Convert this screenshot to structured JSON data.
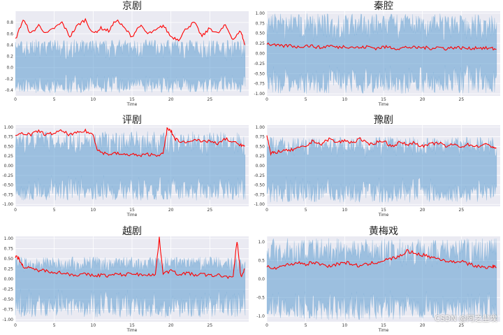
{
  "watermark": "CSDN @阿之尘埃",
  "colors": {
    "background": "#eaeaf2",
    "waveform": "#5b9bd0",
    "envelope": "#ff0000",
    "grid": "#ffffff"
  },
  "chart_data": [
    {
      "type": "line",
      "title": "京剧",
      "xlabel": "Time",
      "ylabel": "",
      "xlim": [
        0,
        30
      ],
      "ylim": [
        -0.5,
        1.0
      ],
      "grid": true,
      "xticks": [
        0,
        5,
        10,
        15,
        20,
        25
      ],
      "yticks": [
        -0.4,
        -0.2,
        0.0,
        0.2,
        0.4,
        0.6,
        0.8
      ],
      "ytick_labels": [
        "-0.4",
        "-0.2",
        "0.0",
        "0.2",
        "0.4",
        "0.6",
        "0.8"
      ],
      "series": [
        {
          "kind": "waveform",
          "amplitude_range": [
            -0.45,
            0.5
          ]
        },
        {
          "kind": "envelope",
          "x": [
            0,
            1,
            2,
            3,
            4,
            5,
            6,
            7,
            8,
            9,
            10,
            11,
            12,
            13,
            14,
            15,
            16,
            17,
            18,
            19,
            20,
            21,
            22,
            23,
            24,
            25,
            26,
            27,
            28,
            29,
            29.5
          ],
          "y": [
            0.5,
            0.85,
            0.6,
            0.75,
            0.6,
            0.7,
            0.8,
            0.55,
            0.75,
            0.85,
            0.6,
            0.7,
            0.65,
            0.85,
            0.7,
            0.55,
            0.75,
            0.6,
            0.65,
            0.75,
            0.55,
            0.5,
            0.7,
            0.8,
            0.55,
            0.7,
            0.6,
            0.75,
            0.5,
            0.65,
            0.4
          ]
        }
      ]
    },
    {
      "type": "line",
      "title": "秦腔",
      "xlabel": "Time",
      "ylabel": "",
      "xlim": [
        0,
        30
      ],
      "ylim": [
        -1.05,
        1.05
      ],
      "grid": true,
      "xticks": [
        0,
        5,
        10,
        15,
        20,
        25
      ],
      "yticks": [
        -1.0,
        -0.75,
        -0.5,
        -0.25,
        0.0,
        0.25,
        0.5,
        0.75,
        1.0
      ],
      "ytick_labels": [
        "-1.00",
        "-0.75",
        "-0.50",
        "-0.25",
        "0.00",
        "0.25",
        "0.50",
        "0.75",
        "1.00"
      ],
      "series": [
        {
          "kind": "waveform",
          "amplitude_range": [
            -1.0,
            1.0
          ]
        },
        {
          "kind": "envelope",
          "x": [
            0,
            1,
            2,
            3,
            4,
            5,
            6,
            7,
            8,
            9,
            10,
            11,
            12,
            13,
            14,
            15,
            16,
            17,
            18,
            19,
            20,
            21,
            22,
            23,
            24,
            25,
            26,
            27,
            28,
            29,
            29.5
          ],
          "y": [
            0.25,
            0.2,
            0.18,
            0.2,
            0.16,
            0.2,
            0.18,
            0.14,
            0.2,
            0.15,
            0.18,
            0.16,
            0.14,
            0.17,
            0.13,
            0.16,
            0.15,
            0.12,
            0.16,
            0.14,
            0.15,
            0.13,
            0.16,
            0.12,
            0.15,
            0.14,
            0.12,
            0.15,
            0.13,
            0.12,
            0.1
          ]
        }
      ]
    },
    {
      "type": "line",
      "title": "评剧",
      "xlabel": "Time",
      "ylabel": "",
      "xlim": [
        0,
        30
      ],
      "ylim": [
        -1.05,
        1.05
      ],
      "grid": true,
      "xticks": [
        0,
        5,
        10,
        15,
        20,
        25
      ],
      "yticks": [
        -1.0,
        -0.75,
        -0.5,
        -0.25,
        0.0,
        0.25,
        0.5,
        0.75,
        1.0
      ],
      "ytick_labels": [
        "-1.00",
        "-0.75",
        "-0.50",
        "-0.25",
        "0.00",
        "0.25",
        "0.50",
        "0.75",
        "1.00"
      ],
      "series": [
        {
          "kind": "waveform",
          "amplitude_range": [
            -0.9,
            0.9
          ]
        },
        {
          "kind": "envelope",
          "x": [
            0,
            1,
            2,
            3,
            4,
            5,
            6,
            7,
            8,
            9,
            10,
            10.5,
            11,
            12,
            13,
            14,
            15,
            16,
            17,
            18,
            19,
            19.5,
            20,
            20.5,
            21,
            22,
            23,
            24,
            25,
            26,
            27,
            28,
            29,
            29.5
          ],
          "y": [
            0.75,
            0.85,
            0.8,
            0.9,
            0.8,
            0.85,
            0.9,
            0.8,
            0.85,
            0.9,
            0.8,
            0.45,
            0.35,
            0.3,
            0.32,
            0.28,
            0.3,
            0.25,
            0.3,
            0.28,
            0.3,
            0.95,
            0.9,
            0.7,
            0.65,
            0.6,
            0.7,
            0.6,
            0.65,
            0.55,
            0.7,
            0.6,
            0.55,
            0.5
          ]
        }
      ]
    },
    {
      "type": "line",
      "title": "豫剧",
      "xlabel": "Time",
      "ylabel": "",
      "xlim": [
        0,
        30
      ],
      "ylim": [
        -1.05,
        1.05
      ],
      "grid": true,
      "xticks": [
        0,
        5,
        10,
        15,
        20,
        25
      ],
      "yticks": [
        -1.0,
        -0.75,
        -0.5,
        -0.25,
        0.0,
        0.25,
        0.5,
        0.75,
        1.0
      ],
      "ytick_labels": [
        "-1.00",
        "-0.75",
        "-0.50",
        "-0.25",
        "0.00",
        "0.25",
        "0.50",
        "0.75",
        "1.00"
      ],
      "series": [
        {
          "kind": "waveform",
          "amplitude_range": [
            -0.95,
            0.75
          ]
        },
        {
          "kind": "envelope",
          "x": [
            0,
            0.5,
            1,
            2,
            3,
            4,
            5,
            6,
            7,
            8,
            9,
            10,
            11,
            12,
            13,
            14,
            15,
            16,
            17,
            18,
            19,
            20,
            21,
            22,
            23,
            24,
            25,
            26,
            27,
            28,
            29,
            29.5
          ],
          "y": [
            0.8,
            0.3,
            0.35,
            0.38,
            0.4,
            0.45,
            0.5,
            0.65,
            0.55,
            0.7,
            0.6,
            0.65,
            0.6,
            0.7,
            0.55,
            0.6,
            0.65,
            0.5,
            0.6,
            0.55,
            0.6,
            0.5,
            0.55,
            0.6,
            0.5,
            0.55,
            0.5,
            0.55,
            0.5,
            0.55,
            0.5,
            0.45
          ]
        }
      ]
    },
    {
      "type": "line",
      "title": "越剧",
      "xlabel": "Time",
      "ylabel": "",
      "xlim": [
        0,
        30
      ],
      "ylim": [
        -1.05,
        1.05
      ],
      "grid": true,
      "xticks": [
        0,
        5,
        10,
        15,
        20,
        25
      ],
      "yticks": [
        -1.0,
        -0.75,
        -0.5,
        -0.25,
        0.0,
        0.25,
        0.5,
        0.75,
        1.0
      ],
      "ytick_labels": [
        "-1.00",
        "-0.75",
        "-0.50",
        "-0.25",
        "0.00",
        "0.25",
        "0.50",
        "0.75",
        "1.00"
      ],
      "series": [
        {
          "kind": "waveform",
          "amplitude_range": [
            -0.95,
            0.55
          ]
        },
        {
          "kind": "envelope",
          "x": [
            0,
            0.5,
            1,
            2,
            3,
            4,
            5,
            6,
            7,
            8,
            9,
            10,
            11,
            12,
            13,
            14,
            15,
            16,
            17,
            18,
            18.5,
            19,
            20,
            21,
            22,
            23,
            24,
            25,
            26,
            27,
            28,
            28.5,
            29,
            29.5
          ],
          "y": [
            0.55,
            0.5,
            0.3,
            0.25,
            0.22,
            0.2,
            0.18,
            0.15,
            0.12,
            0.1,
            0.12,
            0.08,
            0.1,
            0.08,
            0.12,
            0.1,
            0.15,
            0.1,
            0.12,
            0.1,
            1.0,
            0.15,
            0.2,
            0.12,
            0.15,
            0.1,
            0.12,
            0.08,
            0.1,
            0.06,
            0.05,
            0.95,
            0.05,
            0.25
          ]
        }
      ]
    },
    {
      "type": "line",
      "title": "黄梅戏",
      "xlabel": "Time",
      "ylabel": "",
      "xlim": [
        0,
        30
      ],
      "ylim": [
        -1.15,
        1.15
      ],
      "grid": true,
      "xticks": [
        0,
        5,
        10,
        15,
        20,
        25
      ],
      "yticks": [
        -1.0,
        -0.5,
        0.0,
        0.5,
        1.0
      ],
      "ytick_labels": [
        "-1.0",
        "-0.5",
        "0.0",
        "0.5",
        "1.0"
      ],
      "series": [
        {
          "kind": "waveform",
          "amplitude_range": [
            -1.1,
            1.1
          ]
        },
        {
          "kind": "envelope",
          "x": [
            0,
            1,
            2,
            3,
            4,
            5,
            6,
            7,
            8,
            9,
            10,
            11,
            12,
            13,
            14,
            15,
            16,
            17,
            18,
            19,
            20,
            21,
            22,
            23,
            24,
            25,
            26,
            27,
            28,
            29,
            29.5
          ],
          "y": [
            0.35,
            0.3,
            0.35,
            0.4,
            0.45,
            0.4,
            0.45,
            0.4,
            0.35,
            0.4,
            0.45,
            0.4,
            0.35,
            0.4,
            0.45,
            0.5,
            0.55,
            0.6,
            0.75,
            0.7,
            0.65,
            0.6,
            0.55,
            0.5,
            0.45,
            0.5,
            0.4,
            0.35,
            0.3,
            0.35,
            0.3
          ]
        }
      ]
    }
  ]
}
